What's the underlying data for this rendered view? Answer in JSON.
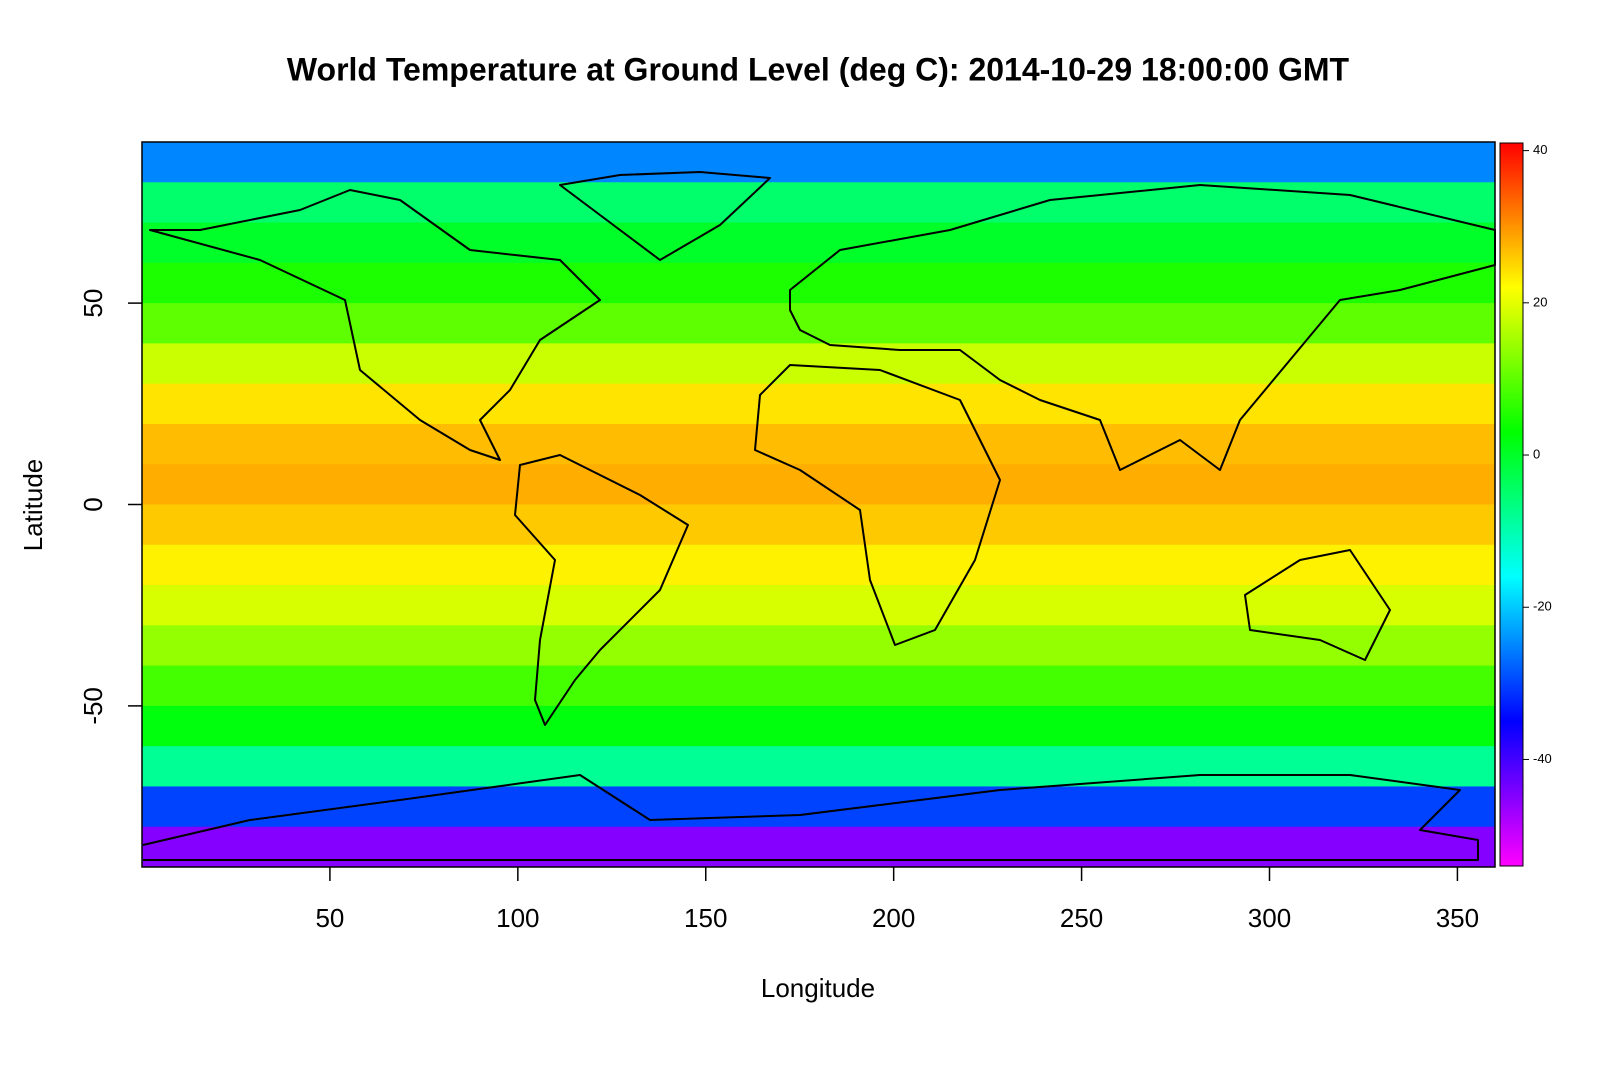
{
  "chart_data": {
    "type": "zonal-heatmap",
    "title": "World Temperature at Ground Level (deg C): 2014-10-29 18:00:00 GMT",
    "x_label": "Longitude",
    "y_label": "Latitude",
    "xlim": [
      0,
      360
    ],
    "ylim": [
      -90,
      90
    ],
    "xticks": [
      50,
      100,
      150,
      200,
      250,
      300,
      350
    ],
    "yticks": [
      -50,
      0,
      50
    ],
    "band_height": 10,
    "latitudes": [
      85,
      75,
      65,
      55,
      45,
      35,
      25,
      15,
      5,
      -5,
      -15,
      -25,
      -35,
      -45,
      -55,
      -65,
      -75,
      -85
    ],
    "values": [
      -25,
      -5,
      0,
      5,
      10,
      18,
      24,
      27,
      28,
      26,
      23,
      19,
      14,
      8,
      2,
      -8,
      -30,
      -45
    ],
    "colorbar": {
      "zlim": [
        -54,
        41
      ],
      "ticks": [
        -40,
        -20,
        0,
        20,
        40
      ],
      "colors": [
        "#ff00ff",
        "#0000ff",
        "#00ffff",
        "#00ff00",
        "#ffff00",
        "#ff0000"
      ]
    }
  }
}
